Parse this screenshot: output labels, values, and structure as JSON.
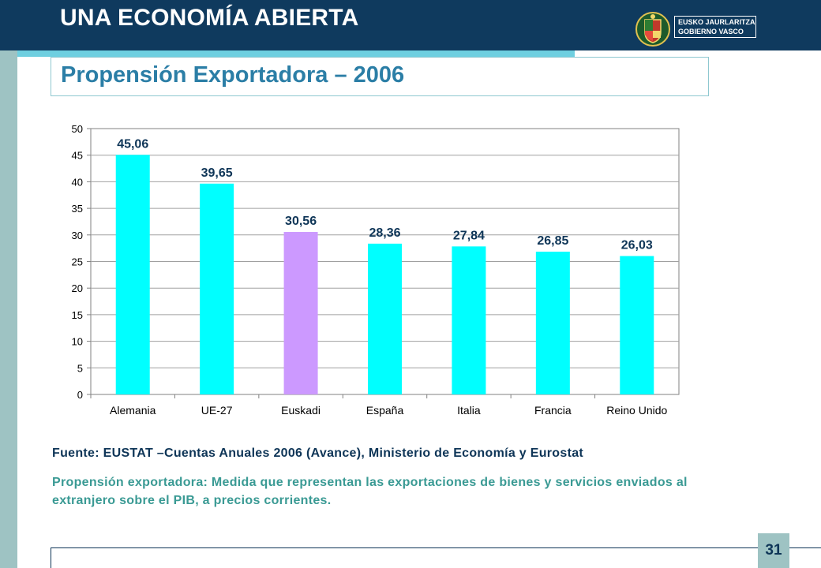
{
  "header": {
    "title": "UNA ECONOMÍA ABIERTA",
    "logo_line1": "EUSKO JAURLARITZA",
    "logo_line2": "GOBIERNO VASCO"
  },
  "slide": {
    "subtitle": "Propensión Exportadora  –  2006",
    "source": "Fuente: EUSTAT –Cuentas Anuales 2006 (Avance), Ministerio de Economía y Eurostat",
    "definition": "Propensión exportadora: Medida que representan las exportaciones de bienes y servicios enviados al extranjero sobre el PIB, a  precios corrientes.",
    "page_number": "31"
  },
  "colors": {
    "bar": "#00ffff",
    "highlight_bar": "#cc99ff",
    "header_bg": "#0f3a5e",
    "value_label": "#0e3557"
  },
  "chart_data": {
    "type": "bar",
    "categories": [
      "Alemania",
      "UE-27",
      "Euskadi",
      "España",
      "Italia",
      "Francia",
      "Reino Unido"
    ],
    "values": [
      45.06,
      39.65,
      30.56,
      28.36,
      27.84,
      26.85,
      26.03
    ],
    "value_labels": [
      "45,06",
      "39,65",
      "30,56",
      "28,36",
      "27,84",
      "26,85",
      "26,03"
    ],
    "highlight": [
      "Euskadi"
    ],
    "yticks": [
      "0",
      "5",
      "10",
      "15",
      "20",
      "25",
      "30",
      "35",
      "40",
      "45",
      "50"
    ],
    "ylim": [
      0,
      50
    ],
    "grid": true,
    "legend": false,
    "title": "",
    "xlabel": "",
    "ylabel": ""
  }
}
